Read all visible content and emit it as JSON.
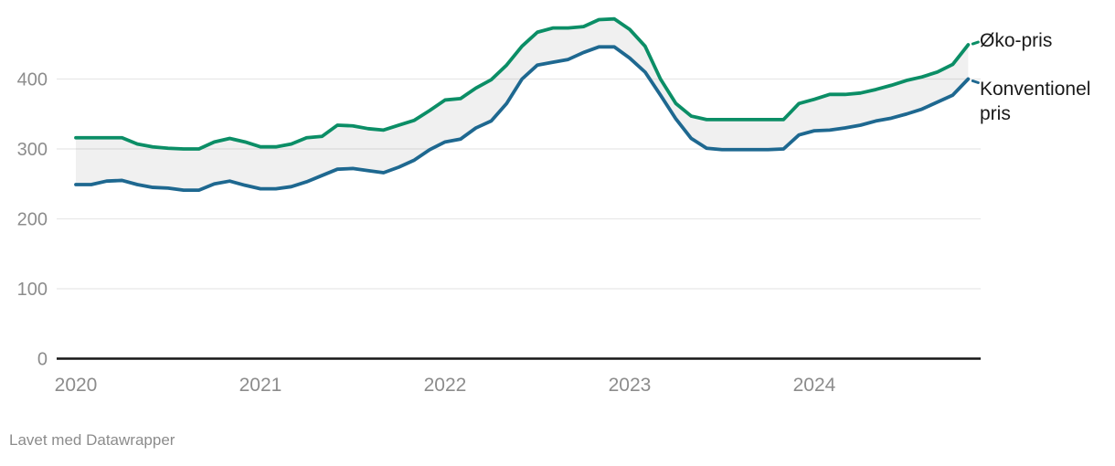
{
  "chart_data": {
    "type": "area",
    "title": "",
    "xlabel": "",
    "ylabel": "",
    "ylim": [
      0,
      500
    ],
    "yticks": [
      0,
      100,
      200,
      300,
      400
    ],
    "xticks": [
      "2020",
      "2021",
      "2022",
      "2023",
      "2024"
    ],
    "grid": "horizontal",
    "legend_position": "right of line ends",
    "band_fill": "rgba(20,20,20,0.062)",
    "x": [
      "2020-01",
      "2020-02",
      "2020-03",
      "2020-04",
      "2020-05",
      "2020-06",
      "2020-07",
      "2020-08",
      "2020-09",
      "2020-10",
      "2020-11",
      "2020-12",
      "2021-01",
      "2021-02",
      "2021-03",
      "2021-04",
      "2021-05",
      "2021-06",
      "2021-07",
      "2021-08",
      "2021-09",
      "2021-10",
      "2021-11",
      "2021-12",
      "2022-01",
      "2022-02",
      "2022-03",
      "2022-04",
      "2022-05",
      "2022-06",
      "2022-07",
      "2022-08",
      "2022-09",
      "2022-10",
      "2022-11",
      "2022-12",
      "2023-01",
      "2023-02",
      "2023-03",
      "2023-04",
      "2023-05",
      "2023-06",
      "2023-07",
      "2023-08",
      "2023-09",
      "2023-10",
      "2023-11",
      "2023-12",
      "2024-01",
      "2024-02",
      "2024-03",
      "2024-04",
      "2024-05",
      "2024-06",
      "2024-07",
      "2024-08",
      "2024-09",
      "2024-10",
      "2024-11"
    ],
    "series": [
      {
        "name": "Øko-pris",
        "color": "#0b8e66",
        "values": [
          316,
          316,
          316,
          316,
          307,
          303,
          301,
          300,
          300,
          310,
          315,
          310,
          303,
          303,
          307,
          316,
          318,
          334,
          333,
          329,
          327,
          334,
          341,
          355,
          370,
          372,
          387,
          399,
          420,
          447,
          467,
          473,
          473,
          475,
          485,
          486,
          471,
          447,
          400,
          365,
          347,
          342,
          342,
          342,
          342,
          342,
          342,
          365,
          371,
          378,
          378,
          380,
          385,
          391,
          398,
          403,
          410,
          421,
          449
        ]
      },
      {
        "name": "Konventionel pris",
        "color": "#1e6890",
        "values": [
          249,
          249,
          254,
          255,
          249,
          245,
          244,
          241,
          241,
          250,
          254,
          248,
          243,
          243,
          246,
          253,
          262,
          271,
          272,
          269,
          266,
          274,
          284,
          299,
          310,
          314,
          330,
          340,
          365,
          400,
          420,
          424,
          428,
          438,
          446,
          446,
          430,
          410,
          377,
          343,
          315,
          301,
          299,
          299,
          299,
          299,
          300,
          320,
          326,
          327,
          330,
          334,
          340,
          344,
          350,
          357,
          367,
          377,
          400
        ]
      }
    ]
  },
  "legend": {
    "eco_label": "Øko-pris",
    "conventional_label": "Konventionel pris"
  },
  "footer": {
    "attribution": "Lavet med Datawrapper"
  },
  "colors": {
    "grid": "#e8e8e8",
    "axis": "#161616",
    "tick_text": "#8c8c8c"
  }
}
